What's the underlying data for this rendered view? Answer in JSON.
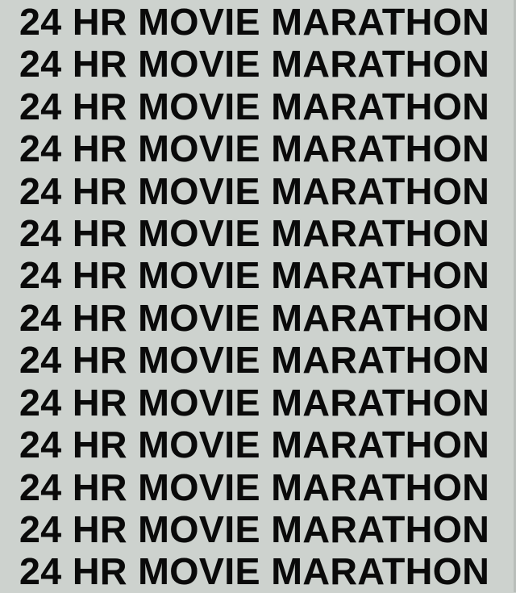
{
  "colors": {
    "background": "#cdd2ce",
    "text": "#0a0a0a",
    "right_edge_shade": "rgba(40,48,44,0.12)"
  },
  "marathon": {
    "line_text": "24 HR MOVIE MARATHON",
    "line_count": 14,
    "lines": [
      "24 HR MOVIE MARATHON",
      "24 HR MOVIE MARATHON",
      "24 HR MOVIE MARATHON",
      "24 HR MOVIE MARATHON",
      "24 HR MOVIE MARATHON",
      "24 HR MOVIE MARATHON",
      "24 HR MOVIE MARATHON",
      "24 HR MOVIE MARATHON",
      "24 HR MOVIE MARATHON",
      "24 HR MOVIE MARATHON",
      "24 HR MOVIE MARATHON",
      "24 HR MOVIE MARATHON",
      "24 HR MOVIE MARATHON",
      "24 HR MOVIE MARATHON"
    ]
  }
}
